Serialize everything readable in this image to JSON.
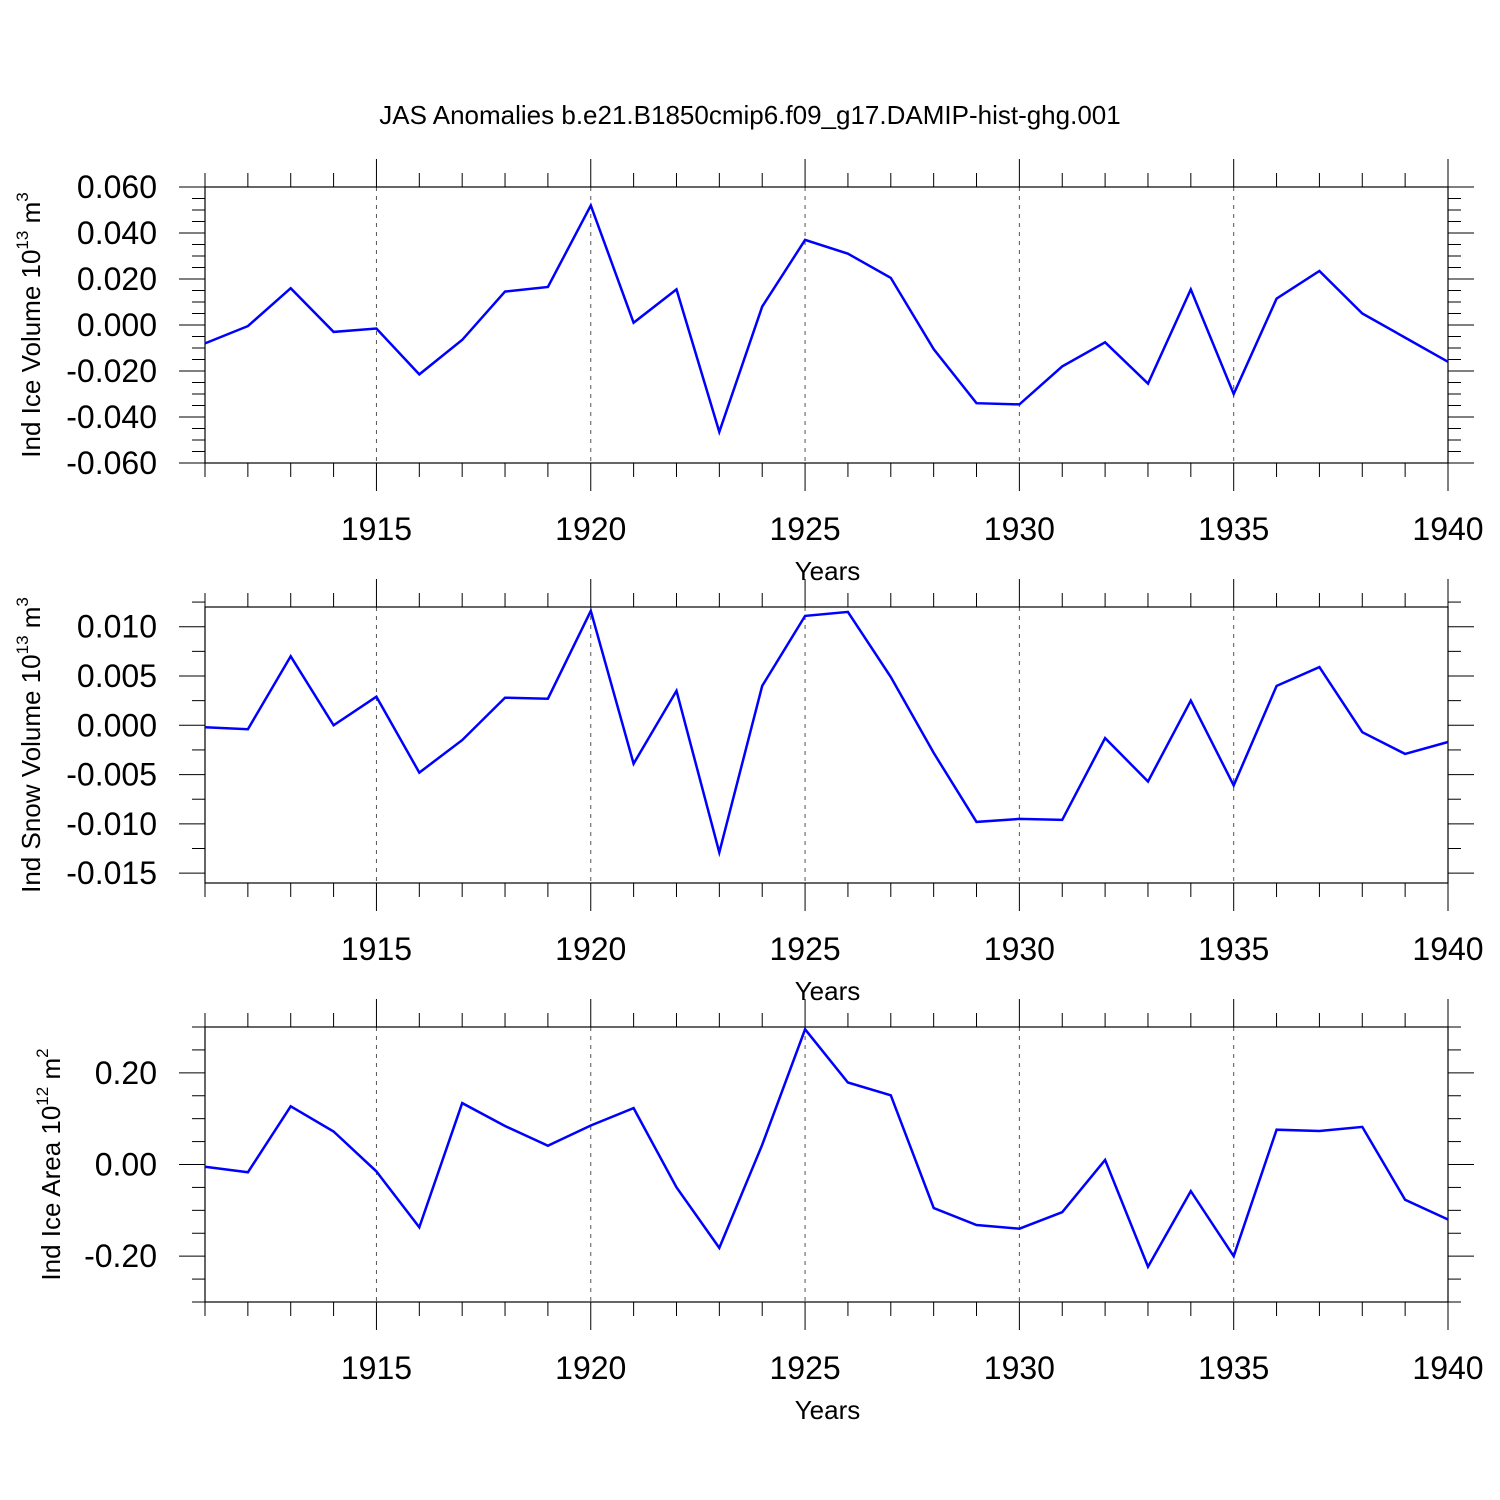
{
  "title": "JAS Anomalies b.e21.B1850cmip6.f09_g17.DAMIP-hist-ghg.001",
  "colors": {
    "line": "#0000ff",
    "axes": "#000000",
    "grid": "#555555"
  },
  "chart_data": [
    {
      "type": "line",
      "xlabel": "Years",
      "ylabel_prefix": "Ind Ice Volume 10",
      "ylabel_exp": "13",
      "ylabel_unit": " m",
      "ylabel_unit_exp": "3",
      "xlim": [
        1911,
        1940
      ],
      "ylim": [
        -0.06,
        0.06
      ],
      "xticks": [
        1915,
        1920,
        1925,
        1930,
        1935,
        1940
      ],
      "xtick_labels": [
        "1915",
        "1920",
        "1925",
        "1930",
        "1935",
        "1940"
      ],
      "yticks": [
        -0.06,
        -0.04,
        -0.02,
        0.0,
        0.02,
        0.04,
        0.06
      ],
      "ytick_labels": [
        "-0.060",
        "-0.040",
        "-0.020",
        "0.000",
        "0.020",
        "0.040",
        "0.060"
      ],
      "x": [
        1911,
        1912,
        1913,
        1914,
        1915,
        1916,
        1917,
        1918,
        1919,
        1920,
        1921,
        1922,
        1923,
        1924,
        1925,
        1926,
        1927,
        1928,
        1929,
        1930,
        1931,
        1932,
        1933,
        1934,
        1935,
        1936,
        1937,
        1938,
        1939,
        1940
      ],
      "series": [
        {
          "name": "Ind Ice Volume",
          "values": [
            -0.008,
            -0.0005,
            0.016,
            -0.003,
            -0.0015,
            -0.0215,
            -0.0065,
            0.0145,
            0.0165,
            0.052,
            0.001,
            0.0155,
            -0.0465,
            0.008,
            0.037,
            0.031,
            0.0205,
            -0.0105,
            -0.034,
            -0.0345,
            -0.018,
            -0.0075,
            -0.0255,
            0.0155,
            -0.03,
            0.0115,
            0.0235,
            0.005,
            -0.0055,
            -0.016
          ]
        }
      ]
    },
    {
      "type": "line",
      "xlabel": "Years",
      "ylabel_prefix": "Ind Snow Volume 10",
      "ylabel_exp": "13",
      "ylabel_unit": " m",
      "ylabel_unit_exp": "3",
      "xlim": [
        1911,
        1940
      ],
      "ylim": [
        -0.016,
        0.012
      ],
      "xticks": [
        1915,
        1920,
        1925,
        1930,
        1935,
        1940
      ],
      "xtick_labels": [
        "1915",
        "1920",
        "1925",
        "1930",
        "1935",
        "1940"
      ],
      "yticks": [
        -0.015,
        -0.01,
        -0.005,
        0.0,
        0.005,
        0.01
      ],
      "ytick_labels": [
        "-0.015",
        "-0.010",
        "-0.005",
        "0.000",
        "0.005",
        "0.010"
      ],
      "x": [
        1911,
        1912,
        1913,
        1914,
        1915,
        1916,
        1917,
        1918,
        1919,
        1920,
        1921,
        1922,
        1923,
        1924,
        1925,
        1926,
        1927,
        1928,
        1929,
        1930,
        1931,
        1932,
        1933,
        1934,
        1935,
        1936,
        1937,
        1938,
        1939,
        1940
      ],
      "series": [
        {
          "name": "Ind Snow Volume",
          "values": [
            -0.0002,
            -0.0004,
            0.007,
            0.0,
            0.0029,
            -0.0048,
            -0.0015,
            0.0028,
            0.0027,
            0.0116,
            -0.0039,
            0.0035,
            -0.0129,
            0.004,
            0.0111,
            0.0115,
            0.0049,
            -0.0028,
            -0.0098,
            -0.0095,
            -0.0096,
            -0.0013,
            -0.0057,
            0.0025,
            -0.0061,
            0.004,
            0.0059,
            -0.0007,
            -0.0029,
            -0.0017
          ]
        }
      ]
    },
    {
      "type": "line",
      "xlabel": "Years",
      "ylabel_prefix": "Ind Ice Area 10",
      "ylabel_exp": "12",
      "ylabel_unit": " m",
      "ylabel_unit_exp": "2",
      "xlim": [
        1911,
        1940
      ],
      "ylim": [
        -0.3,
        0.3
      ],
      "xticks": [
        1915,
        1920,
        1925,
        1930,
        1935,
        1940
      ],
      "xtick_labels": [
        "1915",
        "1920",
        "1925",
        "1930",
        "1935",
        "1940"
      ],
      "yticks": [
        -0.2,
        0.0,
        0.2
      ],
      "ytick_labels": [
        "-0.20",
        "0.00",
        "0.20"
      ],
      "x": [
        1911,
        1912,
        1913,
        1914,
        1915,
        1916,
        1917,
        1918,
        1919,
        1920,
        1921,
        1922,
        1923,
        1924,
        1925,
        1926,
        1927,
        1928,
        1929,
        1930,
        1931,
        1932,
        1933,
        1934,
        1935,
        1936,
        1937,
        1938,
        1939,
        1940
      ],
      "series": [
        {
          "name": "Ind Ice Area",
          "values": [
            -0.005,
            -0.017,
            0.127,
            0.072,
            -0.015,
            -0.137,
            0.134,
            0.084,
            0.041,
            0.085,
            0.123,
            -0.05,
            -0.182,
            0.043,
            0.295,
            0.179,
            0.151,
            -0.095,
            -0.132,
            -0.14,
            -0.104,
            0.01,
            -0.223,
            -0.058,
            -0.2,
            0.076,
            0.073,
            0.082,
            -0.077,
            -0.12
          ]
        }
      ]
    }
  ]
}
